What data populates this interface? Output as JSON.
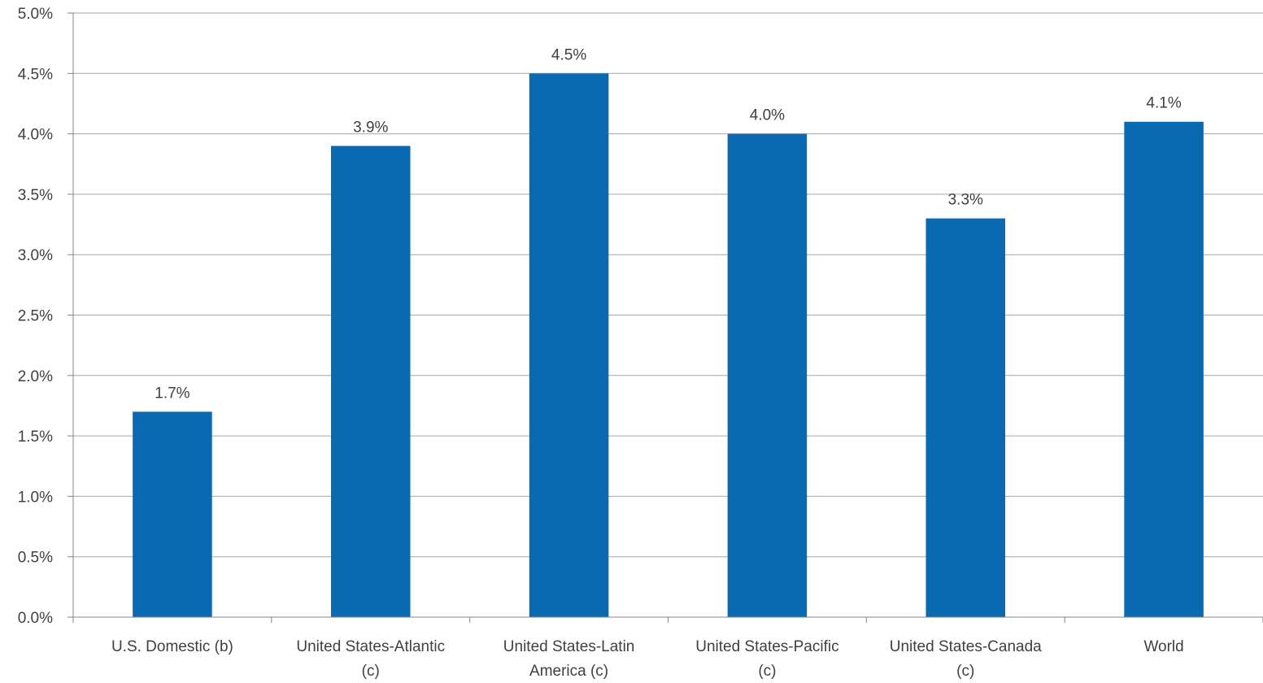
{
  "chart_data": {
    "type": "bar",
    "title": "",
    "xlabel": "",
    "ylabel": "",
    "categories": [
      [
        "U.S. Domestic (b)"
      ],
      [
        "United States-Atlantic",
        "(c)"
      ],
      [
        "United States-Latin",
        "America (c)"
      ],
      [
        "United States-Pacific",
        "(c)"
      ],
      [
        "United States-Canada",
        "(c)"
      ],
      [
        "World"
      ]
    ],
    "values": [
      1.7,
      3.9,
      4.5,
      4.0,
      3.3,
      4.1
    ],
    "data_labels": [
      "1.7%",
      "3.9%",
      "4.5%",
      "4.0%",
      "3.3%",
      "4.1%"
    ],
    "ylim": [
      0,
      5.0
    ],
    "yticks": [
      0,
      0.5,
      1.0,
      1.5,
      2.0,
      2.5,
      3.0,
      3.5,
      4.0,
      4.5,
      5.0
    ],
    "ytick_labels": [
      "0.0%",
      "0.5%",
      "1.0%",
      "1.5%",
      "2.0%",
      "2.5%",
      "3.0%",
      "3.5%",
      "4.0%",
      "4.5%",
      "5.0%"
    ],
    "grid": true,
    "legend": "none",
    "colors": {
      "bar": "#0A6AB1",
      "grid": "#a6a6a6",
      "axis": "#868686",
      "text": "#404040"
    }
  }
}
